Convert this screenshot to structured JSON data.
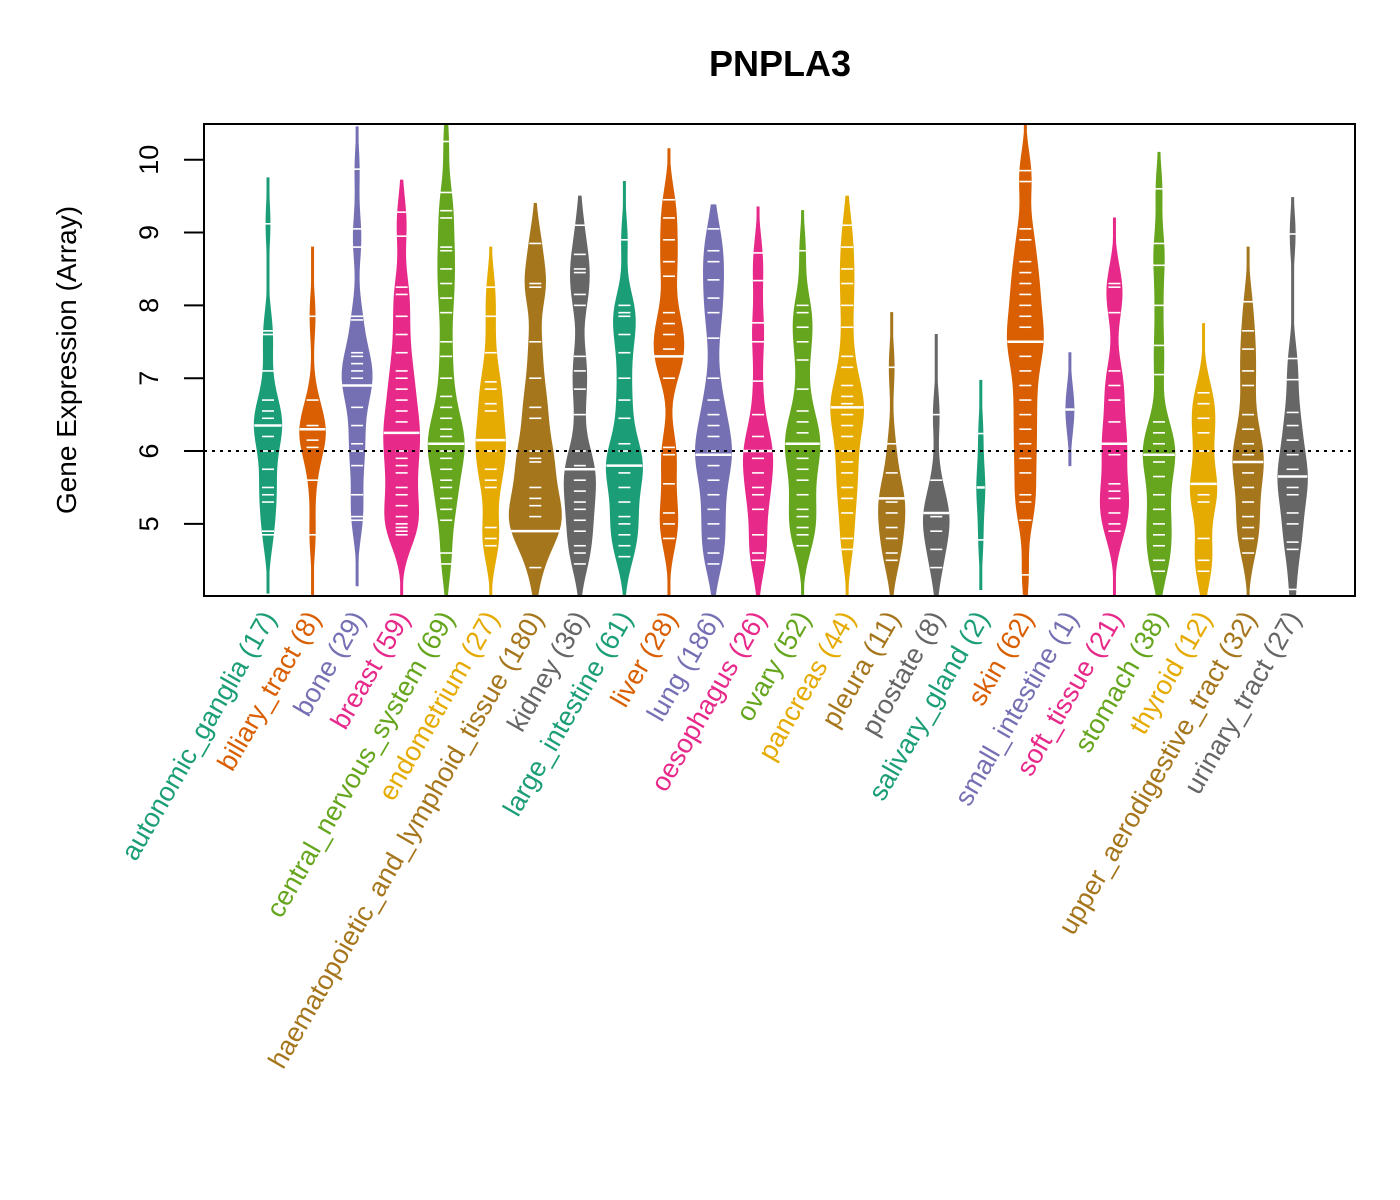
{
  "chart_data": {
    "type": "violin",
    "title": "PNPLA3",
    "xlabel": "",
    "ylabel": "Gene Expression (Array)",
    "ylim": [
      4.01,
      10.49
    ],
    "yticks": [
      5,
      6,
      7,
      8,
      9,
      10
    ],
    "reference_line": {
      "y": 6,
      "style": "dotted",
      "color": "#000000"
    },
    "grid": false,
    "legend": "none",
    "categories": [
      {
        "name": "autonomic_ganglia",
        "n": 17,
        "label": "autonomic_ganglia (17)",
        "color": "#1B9E77",
        "min": 4.05,
        "max": 9.75,
        "median": 6.35,
        "points": [
          9.12,
          7.65,
          7.1,
          6.7,
          6.55,
          6.45,
          6.35,
          6.2,
          6.0,
          5.75,
          5.5,
          5.4,
          5.3,
          4.9,
          4.85,
          7.6
        ]
      },
      {
        "name": "biliary_tract",
        "n": 8,
        "label": "biliary_tract (8)",
        "color": "#D95F02",
        "min": 4.01,
        "max": 8.8,
        "median": 6.3,
        "points": [
          7.85,
          6.7,
          6.35,
          6.15,
          6.05,
          5.6,
          4.85
        ]
      },
      {
        "name": "bone",
        "n": 29,
        "label": "bone (29)",
        "color": "#7570B3",
        "min": 4.15,
        "max": 10.45,
        "median": 6.9,
        "points": [
          9.87,
          9.05,
          8.8,
          7.85,
          7.8,
          7.35,
          7.3,
          7.2,
          7.1,
          7.0,
          6.9,
          6.6,
          6.35,
          6.1,
          6.0,
          5.8,
          5.4,
          5.1,
          5.05
        ]
      },
      {
        "name": "breast",
        "n": 59,
        "label": "breast (59)",
        "color": "#E7298A",
        "min": 4.01,
        "max": 9.72,
        "median": 6.25,
        "points": [
          9.28,
          8.95,
          8.25,
          8.15,
          7.85,
          7.6,
          7.35,
          7.1,
          7.0,
          6.85,
          6.7,
          6.55,
          6.4,
          6.25,
          6.0,
          5.9,
          5.8,
          5.7,
          5.5,
          5.4,
          5.25,
          5.1,
          5.0,
          4.95,
          4.9,
          4.85
        ]
      },
      {
        "name": "central_nervous_system",
        "n": 69,
        "label": "central_nervous_system (69)",
        "color": "#66A61E",
        "min": 4.01,
        "max": 10.5,
        "median": 6.1,
        "points": [
          10.25,
          9.55,
          9.3,
          9.2,
          8.8,
          8.75,
          8.5,
          8.3,
          8.1,
          7.9,
          7.5,
          7.3,
          7.0,
          6.75,
          6.6,
          6.45,
          6.3,
          6.2,
          6.1,
          6.0,
          5.9,
          5.75,
          5.6,
          5.5,
          5.35,
          5.2,
          5.05,
          4.6,
          4.45
        ]
      },
      {
        "name": "endometrium",
        "n": 27,
        "label": "endometrium (27)",
        "color": "#E6AB02",
        "min": 4.01,
        "max": 8.8,
        "median": 6.15,
        "points": [
          8.25,
          7.85,
          7.35,
          6.95,
          6.85,
          6.65,
          6.55,
          6.15,
          6.0,
          5.75,
          5.6,
          5.5,
          4.95,
          4.8,
          4.7
        ]
      },
      {
        "name": "haematopoietic_and_lymphoid_tissue",
        "n": 180,
        "label": "haematopoietic_and_lymphoid_tissue (180)",
        "color": "#A6761D",
        "min": 4.01,
        "max": 9.4,
        "median": 4.9,
        "points": [
          8.85,
          8.3,
          8.25,
          7.5,
          7.0,
          6.6,
          6.45,
          6.0,
          5.9,
          5.85,
          5.5,
          5.35,
          5.25,
          5.1,
          4.9,
          4.4
        ]
      },
      {
        "name": "kidney",
        "n": 36,
        "label": "kidney (36)",
        "color": "#666666",
        "min": 4.01,
        "max": 9.5,
        "median": 5.75,
        "points": [
          9.1,
          8.7,
          8.5,
          8.45,
          8.15,
          8.0,
          7.3,
          7.1,
          6.85,
          6.5,
          6.0,
          5.8,
          5.6,
          5.45,
          5.3,
          5.2,
          5.05,
          4.9,
          4.7,
          4.6,
          4.45
        ]
      },
      {
        "name": "large_intestine",
        "n": 61,
        "label": "large_intestine (61)",
        "color": "#1B9E77",
        "min": 4.01,
        "max": 9.7,
        "median": 5.8,
        "points": [
          8.9,
          8.0,
          7.9,
          7.85,
          7.6,
          7.35,
          7.0,
          6.7,
          6.45,
          6.1,
          6.0,
          5.8,
          5.7,
          5.5,
          5.3,
          5.1,
          5.0,
          4.85,
          4.7,
          4.55
        ]
      },
      {
        "name": "liver",
        "n": 28,
        "label": "liver (28)",
        "color": "#D95F02",
        "min": 4.01,
        "max": 10.15,
        "median": 7.3,
        "points": [
          9.45,
          9.2,
          8.9,
          8.6,
          8.4,
          7.9,
          7.75,
          7.6,
          7.4,
          7.0,
          6.05,
          5.95,
          5.55,
          5.15,
          5.0,
          4.8
        ]
      },
      {
        "name": "lung",
        "n": 186,
        "label": "lung (186)",
        "color": "#7570B3",
        "min": 4.01,
        "max": 9.38,
        "median": 5.95,
        "points": [
          9.05,
          8.75,
          8.6,
          8.35,
          8.1,
          7.9,
          7.55,
          7.0,
          6.7,
          6.5,
          6.35,
          6.2,
          6.0,
          5.8,
          5.6,
          5.4,
          5.2,
          5.0,
          4.8,
          4.6,
          4.45
        ]
      },
      {
        "name": "oesophagus",
        "n": 26,
        "label": "oesophagus (26)",
        "color": "#E7298A",
        "min": 4.01,
        "max": 9.35,
        "median": 6.0,
        "points": [
          8.72,
          8.34,
          7.76,
          7.5,
          6.96,
          6.5,
          6.2,
          5.9,
          5.7,
          5.5,
          5.4,
          5.2,
          4.85,
          4.6,
          4.5
        ]
      },
      {
        "name": "ovary",
        "n": 52,
        "label": "ovary (52)",
        "color": "#66A61E",
        "min": 4.01,
        "max": 9.3,
        "median": 6.1,
        "points": [
          8.75,
          8.0,
          7.9,
          7.7,
          7.5,
          7.25,
          6.85,
          6.55,
          6.4,
          6.25,
          6.1,
          5.9,
          5.75,
          5.6,
          5.4,
          5.2,
          5.1,
          4.95,
          4.85,
          4.7
        ]
      },
      {
        "name": "pancreas",
        "n": 44,
        "label": "pancreas (44)",
        "color": "#E6AB02",
        "min": 4.01,
        "max": 9.5,
        "median": 6.6,
        "points": [
          9.1,
          8.8,
          8.5,
          8.3,
          8.0,
          7.7,
          7.3,
          7.15,
          6.9,
          6.75,
          6.65,
          6.5,
          6.35,
          6.2,
          6.0,
          5.85,
          5.7,
          5.5,
          5.35,
          5.15,
          4.8,
          4.65
        ]
      },
      {
        "name": "pleura",
        "n": 11,
        "label": "pleura (11)",
        "color": "#A6761D",
        "min": 4.01,
        "max": 7.9,
        "median": 5.35,
        "points": [
          7.15,
          6.1,
          5.7,
          5.3,
          5.15,
          4.95,
          4.8,
          4.6,
          4.5
        ]
      },
      {
        "name": "prostate",
        "n": 8,
        "label": "prostate (8)",
        "color": "#666666",
        "min": 4.01,
        "max": 7.6,
        "median": 5.15,
        "points": [
          6.5,
          5.6,
          5.1,
          4.9,
          4.65,
          4.4
        ]
      },
      {
        "name": "salivary_gland",
        "n": 2,
        "label": "salivary_gland (2)",
        "color": "#1B9E77",
        "min": 4.1,
        "max": 6.97,
        "median": 5.5,
        "points": [
          6.24,
          4.78
        ]
      },
      {
        "name": "skin",
        "n": 62,
        "label": "skin (62)",
        "color": "#D95F02",
        "min": 4.01,
        "max": 10.5,
        "median": 7.5,
        "points": [
          9.85,
          9.7,
          9.05,
          8.9,
          8.6,
          8.45,
          8.3,
          8.15,
          8.0,
          7.85,
          7.7,
          7.5,
          7.3,
          7.1,
          6.9,
          6.7,
          6.5,
          6.3,
          6.1,
          5.9,
          5.7,
          5.4,
          5.3,
          5.05,
          4.3
        ]
      },
      {
        "name": "small_intestine",
        "n": 1,
        "label": "small_intestine (1)",
        "color": "#7570B3",
        "min": 5.8,
        "max": 7.35,
        "median": 6.57,
        "points": [
          6.57
        ]
      },
      {
        "name": "soft_tissue",
        "n": 21,
        "label": "soft_tissue (21)",
        "color": "#E7298A",
        "min": 4.01,
        "max": 9.2,
        "median": 6.1,
        "points": [
          8.3,
          8.25,
          7.9,
          7.1,
          6.9,
          6.7,
          6.4,
          5.95,
          5.55,
          5.45,
          5.35,
          5.15,
          5.0,
          4.9
        ]
      },
      {
        "name": "stomach",
        "n": 38,
        "label": "stomach (38)",
        "color": "#66A61E",
        "min": 4.01,
        "max": 10.1,
        "median": 5.95,
        "points": [
          9.6,
          8.85,
          8.55,
          8.0,
          7.45,
          7.05,
          6.4,
          6.25,
          6.1,
          5.85,
          5.65,
          5.4,
          5.2,
          5.0,
          4.85,
          4.7,
          4.5,
          4.35
        ]
      },
      {
        "name": "thyroid",
        "n": 12,
        "label": "thyroid (12)",
        "color": "#E6AB02",
        "min": 4.01,
        "max": 7.75,
        "median": 5.55,
        "points": [
          6.8,
          6.65,
          6.45,
          6.25,
          6.0,
          5.4,
          5.3,
          4.8,
          4.5,
          4.35
        ]
      },
      {
        "name": "upper_aerodigestive_tract",
        "n": 32,
        "label": "upper_aerodigestive_tract (32)",
        "color": "#A6761D",
        "min": 4.01,
        "max": 8.8,
        "median": 5.85,
        "points": [
          8.05,
          7.65,
          7.4,
          7.1,
          6.9,
          6.5,
          6.3,
          6.1,
          5.95,
          5.7,
          5.5,
          5.3,
          5.1,
          4.95,
          4.8,
          4.6
        ]
      },
      {
        "name": "urinary_tract",
        "n": 27,
        "label": "urinary_tract (27)",
        "color": "#666666",
        "min": 4.01,
        "max": 9.48,
        "median": 5.65,
        "points": [
          8.98,
          7.27,
          6.98,
          6.53,
          6.35,
          6.15,
          5.95,
          5.75,
          5.5,
          5.4,
          5.15,
          5.0,
          4.75,
          4.65,
          4.1
        ]
      }
    ]
  }
}
